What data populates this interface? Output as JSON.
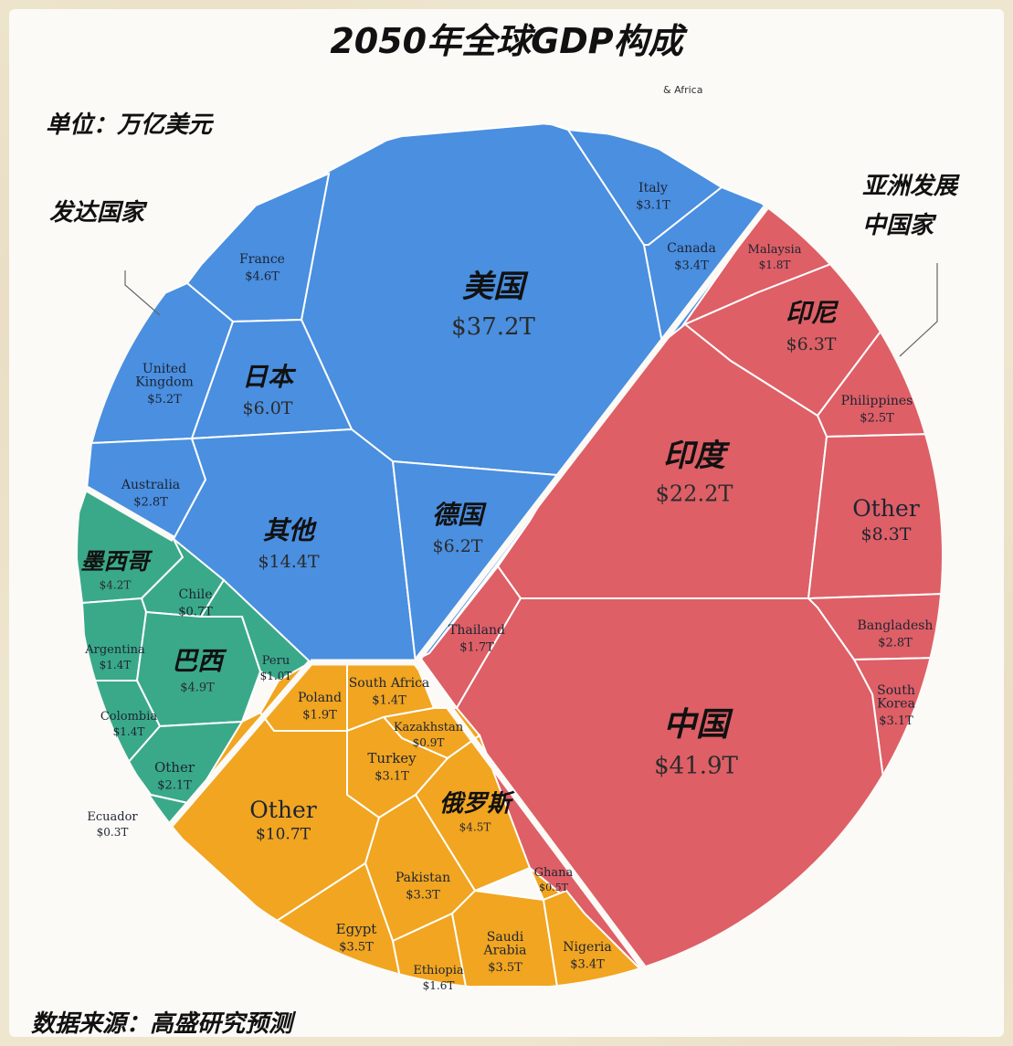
{
  "page": {
    "title": "2050年全球GDP构成",
    "unit_note": "单位：万亿美元",
    "group_developed": "发达国家",
    "group_asia_line1": "亚洲发展",
    "group_asia_line2": "中国家",
    "source_note": "数据来源：高盛研究预测",
    "stray_label": "& Africa"
  },
  "chart_data": {
    "type": "voronoi-treemap",
    "unit": "T",
    "groups": [
      {
        "id": "developed",
        "name": "发达国家",
        "color": "#4a8fe0",
        "items": [
          {
            "name": "美国",
            "value": 37.2,
            "label": "$37.2T"
          },
          {
            "name": "其他",
            "value": 14.4,
            "label": "$14.4T"
          },
          {
            "name": "德国",
            "value": 6.2,
            "label": "$6.2T"
          },
          {
            "name": "日本",
            "value": 6.0,
            "label": "$6.0T"
          },
          {
            "name": "United Kingdom",
            "value": 5.2,
            "label": "$5.2T"
          },
          {
            "name": "France",
            "value": 4.6,
            "label": "$4.6T"
          },
          {
            "name": "Canada",
            "value": 3.4,
            "label": "$3.4T"
          },
          {
            "name": "Italy",
            "value": 3.1,
            "label": "$3.1T"
          },
          {
            "name": "Australia",
            "value": 2.8,
            "label": "$2.8T"
          }
        ]
      },
      {
        "id": "asia",
        "name": "亚洲发展中国家",
        "color": "#de5f66",
        "items": [
          {
            "name": "中国",
            "value": 41.9,
            "label": "$41.9T"
          },
          {
            "name": "印度",
            "value": 22.2,
            "label": "$22.2T"
          },
          {
            "name": "Other",
            "value": 8.3,
            "label": "$8.3T"
          },
          {
            "name": "印尼",
            "value": 6.3,
            "label": "$6.3T"
          },
          {
            "name": "South Korea",
            "value": 3.1,
            "label": "$3.1T"
          },
          {
            "name": "Bangladesh",
            "value": 2.8,
            "label": "$2.8T"
          },
          {
            "name": "Philippines",
            "value": 2.5,
            "label": "$2.5T"
          },
          {
            "name": "Malaysia",
            "value": 1.8,
            "label": "$1.8T"
          },
          {
            "name": "Thailand",
            "value": 1.7,
            "label": "$1.7T"
          }
        ]
      },
      {
        "id": "latam",
        "name": "",
        "color": "#3aa989",
        "items": [
          {
            "name": "巴西",
            "value": 4.9,
            "label": "$4.9T"
          },
          {
            "name": "墨西哥",
            "value": 4.2,
            "label": "$4.2T"
          },
          {
            "name": "Other",
            "value": 2.1,
            "label": "$2.1T"
          },
          {
            "name": "Argentina",
            "value": 1.4,
            "label": "$1.4T"
          },
          {
            "name": "Colombia",
            "value": 1.4,
            "label": "$1.4T"
          },
          {
            "name": "Peru",
            "value": 1.0,
            "label": "$1.0T"
          },
          {
            "name": "Chile",
            "value": 0.7,
            "label": "$0.7T"
          },
          {
            "name": "Ecuador",
            "value": 0.3,
            "label": "$0.3T"
          }
        ]
      },
      {
        "id": "emea",
        "name": "& Africa",
        "color": "#f1a520",
        "items": [
          {
            "name": "Other",
            "value": 10.7,
            "label": "$10.7T"
          },
          {
            "name": "俄罗斯",
            "value": 4.5,
            "label": "$4.5T"
          },
          {
            "name": "Egypt",
            "value": 3.5,
            "label": "$3.5T"
          },
          {
            "name": "Saudi Arabia",
            "value": 3.5,
            "label": "$3.5T"
          },
          {
            "name": "Nigeria",
            "value": 3.4,
            "label": "$3.4T"
          },
          {
            "name": "Pakistan",
            "value": 3.3,
            "label": "$3.3T"
          },
          {
            "name": "Turkey",
            "value": 3.1,
            "label": "$3.1T"
          },
          {
            "name": "Poland",
            "value": 1.9,
            "label": "$1.9T"
          },
          {
            "name": "Ethiopia",
            "value": 1.6,
            "label": "$1.6T"
          },
          {
            "name": "South Africa",
            "value": 1.4,
            "label": "$1.4T"
          },
          {
            "name": "Kazakhstan",
            "value": 0.9,
            "label": "$0.9T"
          },
          {
            "name": "Ghana",
            "value": 0.5,
            "label": "$0.5T"
          }
        ]
      }
    ]
  }
}
